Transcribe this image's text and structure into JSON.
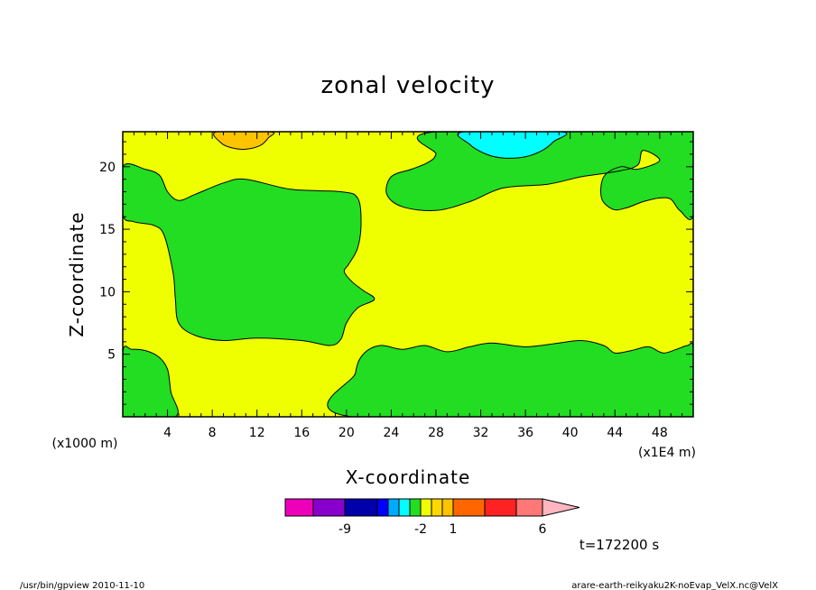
{
  "chart_data": {
    "type": "heatmap",
    "title": "zonal velocity",
    "xlabel": "X-coordinate",
    "ylabel": "Z-coordinate",
    "x_unit": "(x1E4 m)",
    "z_unit": "(x1000 m)",
    "xlim": [
      0,
      51
    ],
    "ylim": [
      0,
      22.8
    ],
    "x_ticks": [
      4,
      8,
      12,
      16,
      20,
      24,
      28,
      32,
      36,
      40,
      44,
      48
    ],
    "y_ticks": [
      5,
      10,
      15,
      20
    ],
    "background_level_color": "#f0ff00",
    "regions": [
      {
        "name": "lower-left-low",
        "color": "#22dd22",
        "points": [
          [
            0,
            0
          ],
          [
            0,
            5.2
          ],
          [
            0.8,
            5.4
          ],
          [
            2,
            5.3
          ],
          [
            3.2,
            4.8
          ],
          [
            4,
            3.8
          ],
          [
            4.3,
            2
          ],
          [
            4.7,
            0
          ]
        ]
      },
      {
        "name": "left-middle-band",
        "color": "#22dd22",
        "points": [
          [
            0,
            16.2
          ],
          [
            1,
            15.6
          ],
          [
            2.8,
            15.3
          ],
          [
            3.7,
            14.5
          ],
          [
            4.5,
            11.5
          ],
          [
            4.7,
            9.5
          ],
          [
            5,
            7.5
          ],
          [
            6.5,
            6.5
          ],
          [
            9,
            6.1
          ],
          [
            12,
            6.3
          ],
          [
            16,
            6.1
          ],
          [
            18.5,
            5.7
          ],
          [
            19.5,
            6.2
          ],
          [
            20,
            7.5
          ],
          [
            21,
            8.7
          ],
          [
            22.5,
            9.4
          ],
          [
            21.5,
            10.1
          ],
          [
            20.5,
            10.8
          ],
          [
            19.8,
            11.6
          ],
          [
            20.2,
            12.2
          ],
          [
            21,
            13.5
          ],
          [
            21.3,
            15.5
          ],
          [
            21,
            17.5
          ],
          [
            19.5,
            18
          ],
          [
            15,
            18.2
          ],
          [
            11,
            19
          ],
          [
            9,
            18.7
          ],
          [
            6.5,
            17.8
          ],
          [
            5,
            17.3
          ],
          [
            4,
            18
          ],
          [
            3.3,
            19.3
          ],
          [
            2,
            19.8
          ],
          [
            0,
            20
          ]
        ]
      },
      {
        "name": "bottom-right-band",
        "color": "#22dd22",
        "points": [
          [
            20.5,
            0
          ],
          [
            20.8,
            3.5
          ],
          [
            21.5,
            5
          ],
          [
            23,
            5.7
          ],
          [
            25,
            5.4
          ],
          [
            27,
            5.7
          ],
          [
            29,
            5.2
          ],
          [
            31,
            5.6
          ],
          [
            33,
            5.9
          ],
          [
            36,
            5.6
          ],
          [
            39,
            5.9
          ],
          [
            41,
            6.1
          ],
          [
            43,
            5.7
          ],
          [
            44,
            5.1
          ],
          [
            45.5,
            5.3
          ],
          [
            47,
            5.6
          ],
          [
            48.3,
            5.1
          ],
          [
            49.5,
            5.4
          ],
          [
            50.5,
            5.7
          ],
          [
            51,
            5.4
          ],
          [
            51,
            0
          ]
        ]
      },
      {
        "name": "top-right-band",
        "color": "#22dd22",
        "points": [
          [
            28,
            22.8
          ],
          [
            28,
            21
          ],
          [
            27.2,
            20.3
          ],
          [
            25.8,
            19.8
          ],
          [
            24,
            19.2
          ],
          [
            23.6,
            17.8
          ],
          [
            25,
            16.8
          ],
          [
            28,
            16.5
          ],
          [
            31,
            17.2
          ],
          [
            34,
            18.3
          ],
          [
            38,
            18.6
          ],
          [
            41,
            19.2
          ],
          [
            44,
            19.6
          ],
          [
            46,
            20.1
          ],
          [
            46.5,
            21.3
          ],
          [
            48,
            20.5
          ],
          [
            46,
            19.8
          ],
          [
            44.5,
            20
          ],
          [
            43,
            19.2
          ],
          [
            42.8,
            17.5
          ],
          [
            43.8,
            16.6
          ],
          [
            45,
            16.7
          ],
          [
            46.5,
            17.2
          ],
          [
            48,
            17.5
          ],
          [
            49,
            17.4
          ],
          [
            49.8,
            16.5
          ],
          [
            51,
            16.2
          ],
          [
            51,
            22.8
          ]
        ]
      },
      {
        "name": "top-blue-patch",
        "color": "#00ffff",
        "points": [
          [
            30.5,
            22.8
          ],
          [
            31,
            21.8
          ],
          [
            32.5,
            21
          ],
          [
            34,
            20.7
          ],
          [
            36,
            20.8
          ],
          [
            37.5,
            21.3
          ],
          [
            38.5,
            22
          ],
          [
            39.2,
            22.8
          ]
        ]
      },
      {
        "name": "top-orange-patch",
        "color": "#ffc400",
        "points": [
          [
            8.4,
            22.8
          ],
          [
            8.8,
            21.9
          ],
          [
            9.8,
            21.5
          ],
          [
            11,
            21.4
          ],
          [
            12.3,
            21.7
          ],
          [
            13,
            22.3
          ],
          [
            13.2,
            22.8
          ]
        ]
      }
    ],
    "colorbar": {
      "colors": [
        "#ee00bb",
        "#8800cc",
        "#0000aa",
        "#0000ff",
        "#00aaff",
        "#00ffff",
        "#22dd22",
        "#f0ff00",
        "#ffd700",
        "#ffc400",
        "#ff6600",
        "#ff2222",
        "#ff7777"
      ],
      "over_color": "#ffb6c1",
      "labels": [
        {
          "text": "-9",
          "boundary": 2
        },
        {
          "text": "-2",
          "boundary": 7
        },
        {
          "text": "1",
          "boundary": 10
        },
        {
          "text": "6",
          "boundary": 13
        }
      ]
    }
  },
  "time_label": "t=172200 s",
  "footer": {
    "left": "/usr/bin/gpview  2010-11-10",
    "right": "arare-earth-reikyaku2K-noEvap_VelX.nc@VelX"
  }
}
